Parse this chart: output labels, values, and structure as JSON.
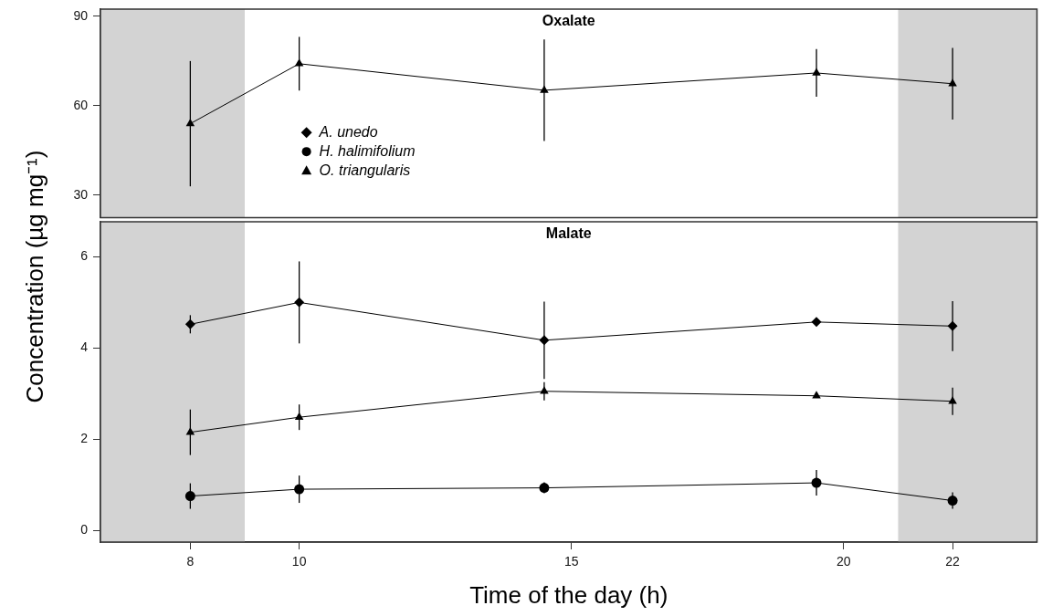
{
  "chart_data": [
    {
      "type": "line",
      "title": "Oxalate",
      "x": [
        8,
        10,
        14.5,
        19.5,
        22
      ],
      "series": [
        {
          "color": "#000000",
          "marker": "triangle",
          "values": [
            54,
            74.1,
            65.2,
            71,
            67.4
          ],
          "errors": [
            21,
            9,
            17,
            8,
            12
          ]
        }
      ],
      "xlim": [
        6.35,
        23.55
      ],
      "xticks": [
        8,
        10,
        15,
        20,
        22
      ],
      "ylim": [
        22.5,
        92.4
      ],
      "yticks": [
        30,
        60,
        90
      ],
      "bands": [
        {
          "axis": "x",
          "from": 6.35,
          "to": 9,
          "color": "#d3d3d3"
        },
        {
          "axis": "x",
          "from": 21,
          "to": 23.55,
          "color": "#d3d3d3"
        }
      ],
      "grid": false,
      "tick_labels": "y"
    },
    {
      "type": "line",
      "title": "Malate",
      "xlabel": "Time of the day (h)",
      "ylabel": "Concentration (µg mg⁻¹)",
      "x": [
        8,
        10,
        14.5,
        19.5,
        22
      ],
      "series": [
        {
          "name": "A. unedo",
          "color": "#000000",
          "marker": "diamond",
          "values": [
            4.52,
            5.0,
            4.17,
            4.57,
            4.48
          ],
          "errors": [
            0.2,
            0.9,
            0.85,
            null,
            0.55
          ]
        },
        {
          "name": "H. halimifolium",
          "color": "#000000",
          "marker": "circle",
          "values": [
            0.75,
            0.9,
            0.93,
            1.04,
            0.65
          ],
          "errors": [
            0.28,
            0.3,
            0.12,
            0.28,
            0.18
          ]
        },
        {
          "name": "O. triangularis",
          "color": "#000000",
          "marker": "triangle",
          "values": [
            2.15,
            2.48,
            3.05,
            2.95,
            2.83
          ],
          "errors": [
            0.5,
            0.28,
            0.2,
            null,
            0.3
          ]
        }
      ],
      "xlim": [
        6.35,
        23.55
      ],
      "xticks": [
        8,
        10,
        15,
        20,
        22
      ],
      "ylim": [
        -0.26,
        6.77
      ],
      "yticks": [
        0,
        2,
        4,
        6
      ],
      "bands": [
        {
          "axis": "x",
          "from": 6.35,
          "to": 9,
          "color": "#d3d3d3"
        },
        {
          "axis": "x",
          "from": 21,
          "to": 23.55,
          "color": "#d3d3d3"
        }
      ],
      "grid": false,
      "legend": "top left"
    }
  ]
}
